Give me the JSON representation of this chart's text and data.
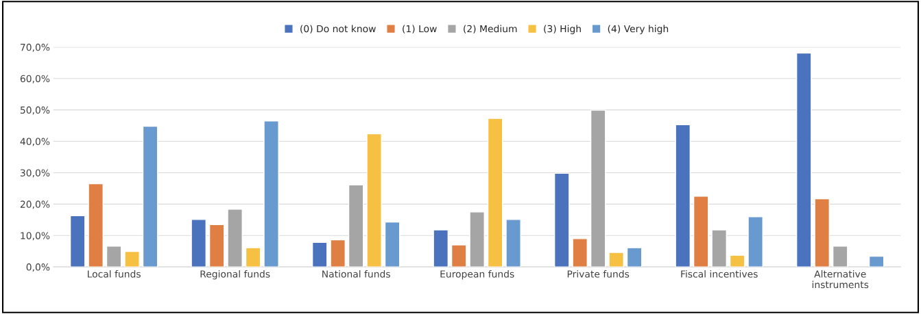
{
  "chart_data": {
    "type": "bar",
    "categories": [
      "Local funds",
      "Regional funds",
      "National funds",
      "European funds",
      "Private funds",
      "Fiscal incentives",
      "Alternative\ninstruments"
    ],
    "series": [
      {
        "name": "(0) Do not know",
        "color": "#4a72bd",
        "values": [
          16.3,
          15.1,
          7.8,
          11.8,
          29.8,
          45.3,
          68.1
        ]
      },
      {
        "name": "(1) Low",
        "color": "#e07f43",
        "values": [
          26.5,
          13.5,
          8.6,
          7.0,
          9.0,
          22.5,
          21.7
        ]
      },
      {
        "name": "(2) Medium",
        "color": "#a5a5a5",
        "values": [
          6.6,
          18.4,
          26.1,
          17.5,
          49.9,
          11.8,
          6.6
        ]
      },
      {
        "name": "(3) High",
        "color": "#f6c042",
        "values": [
          4.9,
          6.1,
          42.4,
          47.3,
          4.6,
          3.7,
          null
        ]
      },
      {
        "name": "(4) Very high",
        "color": "#6899cf",
        "values": [
          44.8,
          46.5,
          14.3,
          15.1,
          6.1,
          16.0,
          3.4
        ]
      }
    ],
    "ylim": [
      0,
      70
    ],
    "yticks": [
      {
        "value": 0,
        "label": "0,0%"
      },
      {
        "value": 10,
        "label": "10,0%"
      },
      {
        "value": 20,
        "label": "20,0%"
      },
      {
        "value": 30,
        "label": "30,0%"
      },
      {
        "value": 40,
        "label": "40,0%"
      },
      {
        "value": 50,
        "label": "50,0%"
      },
      {
        "value": 60,
        "label": "60,0%"
      },
      {
        "value": 70,
        "label": "70,0%"
      }
    ],
    "grid": "y",
    "legend": "top"
  }
}
